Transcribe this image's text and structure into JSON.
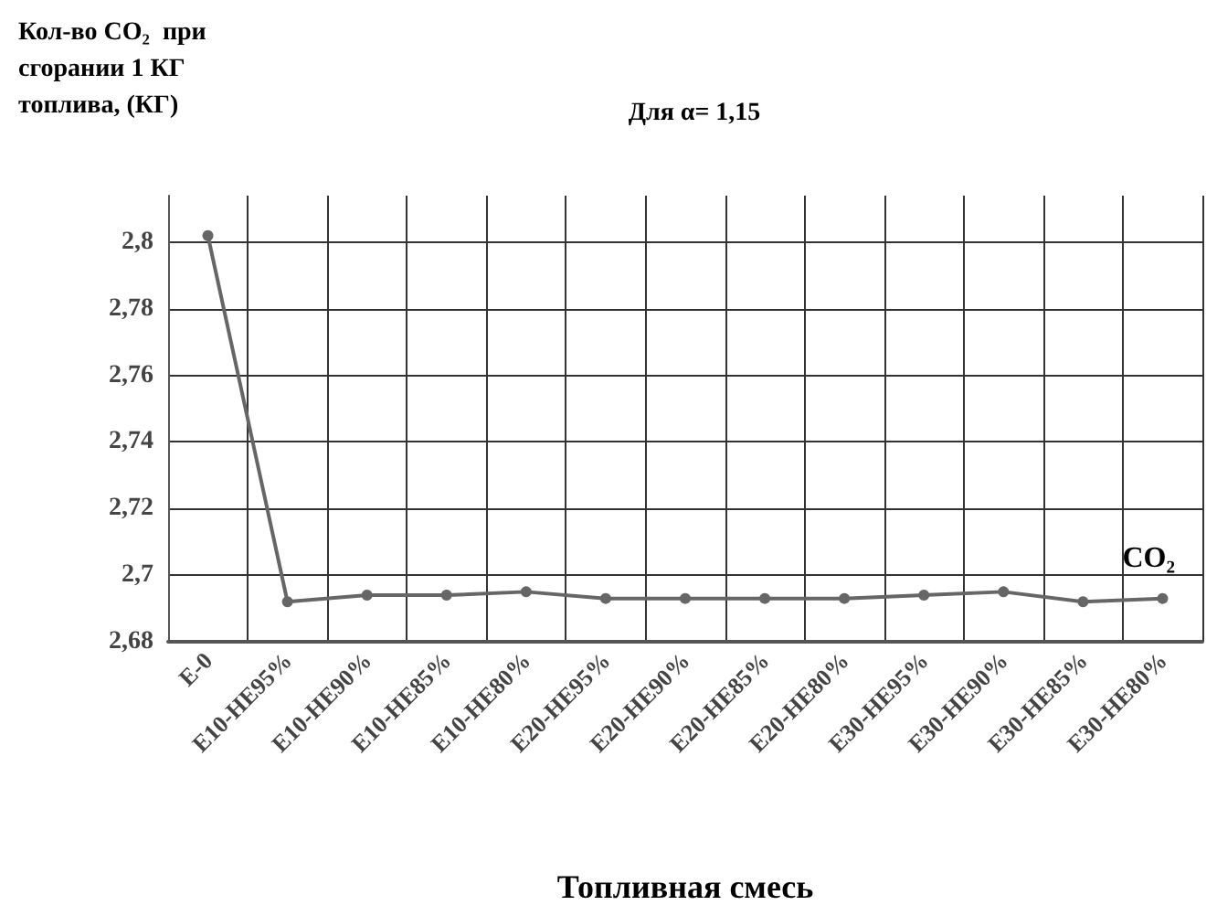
{
  "chart_data": {
    "type": "line",
    "title": "Для α= 1,15",
    "ylabel": "Кол-во CO₂  при\nсгорании 1 КГ\nтоплива, (КГ)",
    "xlabel": "Топливная смесь",
    "categories": [
      "E-0",
      "E10-HE95%",
      "E10-HE90%",
      "E10-HE85%",
      "E10-HE80%",
      "E20-HE95%",
      "E20-HE90%",
      "E20-HE85%",
      "E20-HE80%",
      "E30-HE95%",
      "E30-HE90%",
      "E30-HE85%",
      "E30-HE80%"
    ],
    "series": [
      {
        "name": "CO₂",
        "color": "#666666",
        "values": [
          2.802,
          2.692,
          2.694,
          2.694,
          2.695,
          2.693,
          2.693,
          2.693,
          2.693,
          2.694,
          2.695,
          2.692,
          2.693
        ]
      }
    ],
    "ylim": [
      2.68,
      2.814
    ],
    "yticks": [
      {
        "value": 2.68,
        "label": "2,68"
      },
      {
        "value": 2.7,
        "label": "2,7"
      },
      {
        "value": 2.72,
        "label": "2,72"
      },
      {
        "value": 2.74,
        "label": "2,74"
      },
      {
        "value": 2.76,
        "label": "2,76"
      },
      {
        "value": 2.78,
        "label": "2,78"
      },
      {
        "value": 2.8,
        "label": "2,8"
      }
    ],
    "grid": true,
    "legend": false,
    "marker": "circle",
    "line_style": "solid"
  }
}
